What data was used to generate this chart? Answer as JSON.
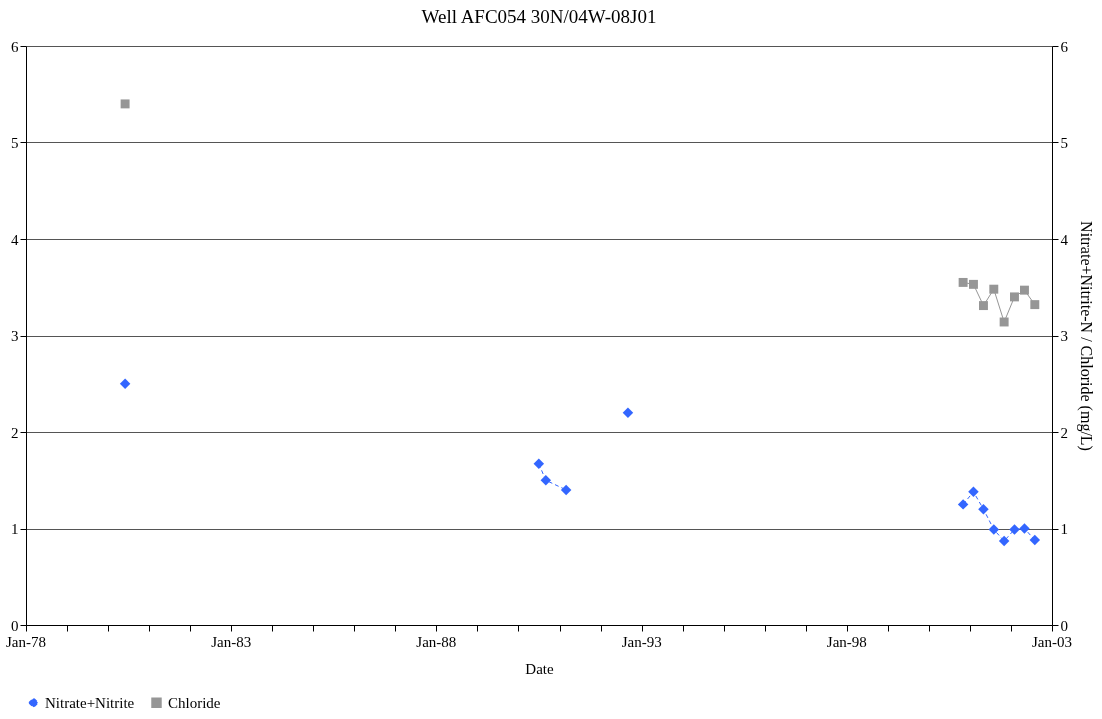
{
  "chart_data": {
    "type": "line",
    "title": "Well AFC054   30N/04W-08J01",
    "xlabel": "Date",
    "y2label": "Nitrate+Nitrite-N / Chloride (mg/L)",
    "x": [
      "1980-06",
      "1985-01",
      "1990-07",
      "1990-09",
      "1991-03",
      "1992-01",
      "1992-09",
      "1996-06",
      "2000-11",
      "2001-02",
      "2001-05",
      "2001-08",
      "2001-11",
      "2002-02",
      "2002-05",
      "2002-08"
    ],
    "series": [
      {
        "name": "Nitrate+Nitrite",
        "color": "#3366ff",
        "marker": "diamond",
        "line_style": "dashed",
        "values": [
          2.5,
          null,
          1.67,
          1.5,
          1.4,
          null,
          2.2,
          null,
          1.25,
          1.38,
          1.2,
          0.99,
          0.87,
          0.99,
          1.0,
          0.88
        ]
      },
      {
        "name": "Chloride",
        "color": "#969696",
        "marker": "square",
        "line_style": "solid",
        "values": [
          5.4,
          null,
          null,
          null,
          null,
          null,
          null,
          null,
          3.55,
          3.53,
          3.31,
          3.48,
          3.14,
          3.4,
          3.47,
          3.32
        ]
      }
    ],
    "xlim": [
      "1978-01",
      "2003-01"
    ],
    "xticks": [
      {
        "value": "1978-01",
        "label": "Jan-78"
      },
      {
        "value": "1979-01",
        "label": null
      },
      {
        "value": "1980-01",
        "label": null
      },
      {
        "value": "1981-01",
        "label": null
      },
      {
        "value": "1982-01",
        "label": null
      },
      {
        "value": "1983-01",
        "label": "Jan-83"
      },
      {
        "value": "1984-01",
        "label": null
      },
      {
        "value": "1985-01",
        "label": null
      },
      {
        "value": "1986-01",
        "label": null
      },
      {
        "value": "1987-01",
        "label": null
      },
      {
        "value": "1988-01",
        "label": "Jan-88"
      },
      {
        "value": "1989-01",
        "label": null
      },
      {
        "value": "1990-01",
        "label": null
      },
      {
        "value": "1991-01",
        "label": null
      },
      {
        "value": "1992-01",
        "label": null
      },
      {
        "value": "1993-01",
        "label": "Jan-93"
      },
      {
        "value": "1994-01",
        "label": null
      },
      {
        "value": "1995-01",
        "label": null
      },
      {
        "value": "1996-01",
        "label": null
      },
      {
        "value": "1997-01",
        "label": null
      },
      {
        "value": "1998-01",
        "label": "Jan-98"
      },
      {
        "value": "1999-01",
        "label": null
      },
      {
        "value": "2000-01",
        "label": null
      },
      {
        "value": "2001-01",
        "label": null
      },
      {
        "value": "2002-01",
        "label": null
      },
      {
        "value": "2003-01",
        "label": "Jan-03"
      }
    ],
    "ylim": [
      0,
      6
    ],
    "yticks": [
      0,
      1,
      2,
      3,
      4,
      5,
      6
    ],
    "y2lim": [
      0,
      6
    ],
    "y2ticks": [
      0,
      1,
      2,
      3,
      4,
      5,
      6
    ],
    "grid": "y",
    "legend": "bottom"
  }
}
